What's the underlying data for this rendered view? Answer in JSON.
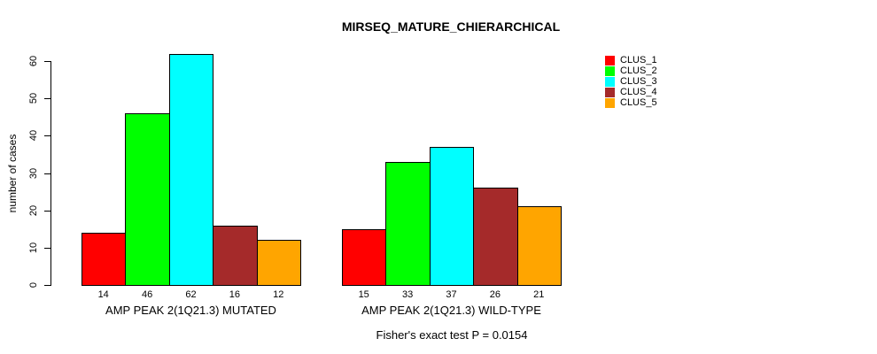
{
  "chart_data": {
    "type": "bar",
    "title": "MIRSEQ_MATURE_CHIERARCHICAL",
    "ylabel": "number of cases",
    "xlabel": "",
    "ylim": [
      0,
      60
    ],
    "yticks": [
      0,
      10,
      20,
      30,
      40,
      50,
      60
    ],
    "grid": false,
    "legend_position": "right",
    "categories": [
      "AMP PEAK 2(1Q21.3) MUTATED",
      "AMP PEAK 2(1Q21.3) WILD-TYPE"
    ],
    "series": [
      {
        "name": "CLUS_1",
        "color": "#ff0000",
        "values": [
          14,
          15
        ]
      },
      {
        "name": "CLUS_2",
        "color": "#00ff00",
        "values": [
          46,
          33
        ]
      },
      {
        "name": "CLUS_3",
        "color": "#00ffff",
        "values": [
          62,
          37
        ]
      },
      {
        "name": "CLUS_4",
        "color": "#a52a2a",
        "values": [
          16,
          26
        ]
      },
      {
        "name": "CLUS_5",
        "color": "#ffa500",
        "values": [
          12,
          21
        ]
      }
    ],
    "bar_value_labels": [
      [
        14,
        46,
        62,
        16,
        12
      ],
      [
        15,
        33,
        37,
        26,
        21
      ]
    ],
    "annotation": "Fisher's exact test P = 0.0154",
    "axis_color": "#000000",
    "background_color": "#ffffff"
  }
}
